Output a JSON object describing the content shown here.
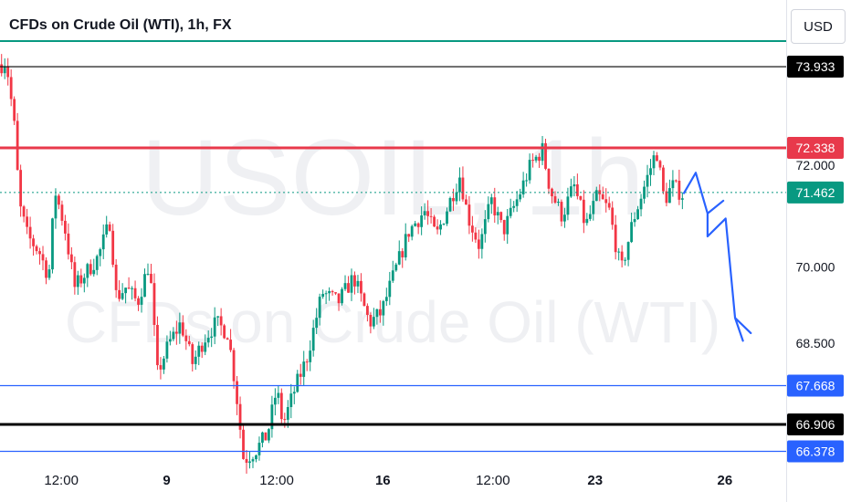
{
  "header": {
    "title": "CFDs on Crude Oil (WTI), 1h, FX",
    "currency": "USD"
  },
  "watermark": {
    "symbol": "USOIL, 1h",
    "name": "CFDs on Crude Oil (WTI)"
  },
  "chart_data": {
    "type": "candlestick",
    "title": "CFDs on Crude Oil (WTI), 1h, FX",
    "interval": "1h",
    "currency": "USD",
    "ylim": [
      66.1,
      74.4
    ],
    "y_ticks": [
      {
        "value": 72.0,
        "label": "72.000"
      },
      {
        "value": 70.0,
        "label": "70.000"
      },
      {
        "value": 68.5,
        "label": "68.500"
      }
    ],
    "x_ticks": [
      {
        "pos": 0.078,
        "label": "12:00"
      },
      {
        "pos": 0.212,
        "label": "9"
      },
      {
        "pos": 0.352,
        "label": "12:00"
      },
      {
        "pos": 0.487,
        "label": "16"
      },
      {
        "pos": 0.627,
        "label": "12:00"
      },
      {
        "pos": 0.757,
        "label": "23"
      },
      {
        "pos": 0.922,
        "label": "26"
      }
    ],
    "levels": [
      {
        "value": 73.933,
        "label": "73.933",
        "color": "#000000",
        "style": "solid"
      },
      {
        "value": 72.338,
        "label": "72.338",
        "color": "#e8394b",
        "style": "thick"
      },
      {
        "value": 71.462,
        "label": "71.462",
        "color": "#089981",
        "style": "dotted"
      },
      {
        "value": 67.668,
        "label": "67.668",
        "color": "#2962ff",
        "style": "solid"
      },
      {
        "value": 66.906,
        "label": "66.906",
        "color": "#000000",
        "style": "thick"
      },
      {
        "value": 66.378,
        "label": "66.378",
        "color": "#2962ff",
        "style": "solid"
      }
    ],
    "price_path": [
      [
        0.0,
        73.9
      ],
      [
        0.005,
        74.1
      ],
      [
        0.01,
        73.8
      ],
      [
        0.018,
        72.8
      ],
      [
        0.025,
        71.2
      ],
      [
        0.035,
        70.6
      ],
      [
        0.05,
        70.3
      ],
      [
        0.062,
        69.8
      ],
      [
        0.07,
        71.5
      ],
      [
        0.082,
        70.8
      ],
      [
        0.095,
        69.6
      ],
      [
        0.11,
        69.9
      ],
      [
        0.125,
        70.2
      ],
      [
        0.14,
        70.9
      ],
      [
        0.148,
        69.4
      ],
      [
        0.16,
        69.6
      ],
      [
        0.175,
        69.3
      ],
      [
        0.19,
        70.1
      ],
      [
        0.2,
        67.9
      ],
      [
        0.215,
        68.5
      ],
      [
        0.23,
        68.9
      ],
      [
        0.245,
        68.1
      ],
      [
        0.26,
        68.6
      ],
      [
        0.275,
        68.9
      ],
      [
        0.29,
        68.7
      ],
      [
        0.3,
        67.6
      ],
      [
        0.31,
        66.2
      ],
      [
        0.325,
        66.4
      ],
      [
        0.34,
        66.7
      ],
      [
        0.352,
        67.6
      ],
      [
        0.36,
        66.9
      ],
      [
        0.375,
        67.6
      ],
      [
        0.39,
        68.2
      ],
      [
        0.41,
        69.5
      ],
      [
        0.43,
        69.3
      ],
      [
        0.45,
        69.8
      ],
      [
        0.47,
        68.9
      ],
      [
        0.485,
        69.1
      ],
      [
        0.5,
        69.8
      ],
      [
        0.52,
        70.7
      ],
      [
        0.54,
        71.1
      ],
      [
        0.555,
        70.6
      ],
      [
        0.575,
        71.4
      ],
      [
        0.585,
        71.8
      ],
      [
        0.595,
        71.0
      ],
      [
        0.61,
        70.4
      ],
      [
        0.625,
        71.3
      ],
      [
        0.64,
        70.7
      ],
      [
        0.66,
        71.4
      ],
      [
        0.675,
        72.0
      ],
      [
        0.69,
        72.3
      ],
      [
        0.7,
        71.5
      ],
      [
        0.715,
        71.0
      ],
      [
        0.73,
        71.6
      ],
      [
        0.745,
        70.8
      ],
      [
        0.76,
        71.4
      ],
      [
        0.775,
        71.1
      ],
      [
        0.79,
        69.9
      ],
      [
        0.805,
        70.9
      ],
      [
        0.82,
        71.6
      ],
      [
        0.835,
        72.3
      ],
      [
        0.845,
        71.3
      ],
      [
        0.855,
        71.6
      ],
      [
        0.87,
        71.4
      ]
    ],
    "projection": [
      [
        0.87,
        71.45
      ],
      [
        0.885,
        71.85
      ],
      [
        0.9,
        71.05
      ],
      [
        0.92,
        71.3
      ],
      [
        0.9,
        71.05
      ],
      [
        0.9,
        70.6
      ],
      [
        0.923,
        70.95
      ],
      [
        0.935,
        69.0
      ],
      [
        0.955,
        68.7
      ],
      [
        0.935,
        69.0
      ],
      [
        0.945,
        68.55
      ]
    ]
  }
}
